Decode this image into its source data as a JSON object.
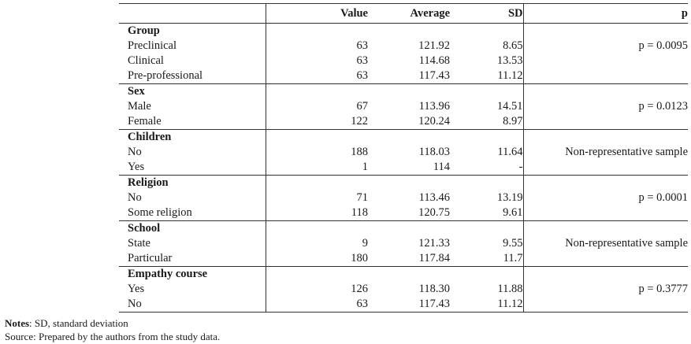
{
  "table": {
    "headers": {
      "value": "Value",
      "average": "Average",
      "sd": "SD",
      "p": "p"
    },
    "groups": [
      {
        "title": "Group",
        "rows": [
          {
            "label": "Preclinical",
            "value": "63",
            "average": "121.92",
            "sd": "8.65",
            "p": "p = 0.0095"
          },
          {
            "label": "Clinical",
            "value": "63",
            "average": "114.68",
            "sd": "13.53",
            "p": ""
          },
          {
            "label": "Pre-professional",
            "value": "63",
            "average": "117.43",
            "sd": "11.12",
            "p": ""
          }
        ]
      },
      {
        "title": "Sex",
        "rows": [
          {
            "label": "Male",
            "value": "67",
            "average": "113.96",
            "sd": "14.51",
            "p": "p = 0.0123"
          },
          {
            "label": "Female",
            "value": "122",
            "average": "120.24",
            "sd": "8.97",
            "p": ""
          }
        ]
      },
      {
        "title": "Children",
        "rows": [
          {
            "label": "No",
            "value": "188",
            "average": "118.03",
            "sd": "11.64",
            "p": "Non-representative sample"
          },
          {
            "label": "Yes",
            "value": "1",
            "average": "114",
            "sd": "-",
            "p": ""
          }
        ]
      },
      {
        "title": "Religion",
        "rows": [
          {
            "label": "No",
            "value": "71",
            "average": "113.46",
            "sd": "13.19",
            "p": "p = 0.0001"
          },
          {
            "label": "Some religion",
            "value": "118",
            "average": "120.75",
            "sd": "9.61",
            "p": ""
          }
        ]
      },
      {
        "title": "School",
        "rows": [
          {
            "label": "State",
            "value": "9",
            "average": "121.33",
            "sd": "9.55",
            "p": "Non-representative sample"
          },
          {
            "label": "Particular",
            "value": "180",
            "average": "117.84",
            "sd": "11.7",
            "p": ""
          }
        ]
      },
      {
        "title": "Empathy course",
        "rows": [
          {
            "label": "Yes",
            "value": "126",
            "average": "118.30",
            "sd": "11.88",
            "p": "p = 0.3777"
          },
          {
            "label": "No",
            "value": "63",
            "average": "117.43",
            "sd": "11.12",
            "p": ""
          }
        ]
      }
    ]
  },
  "notes": {
    "notes_label": "Notes",
    "notes_text": ": SD, standard deviation",
    "source": "Source: Prepared by the authors from the study data."
  }
}
